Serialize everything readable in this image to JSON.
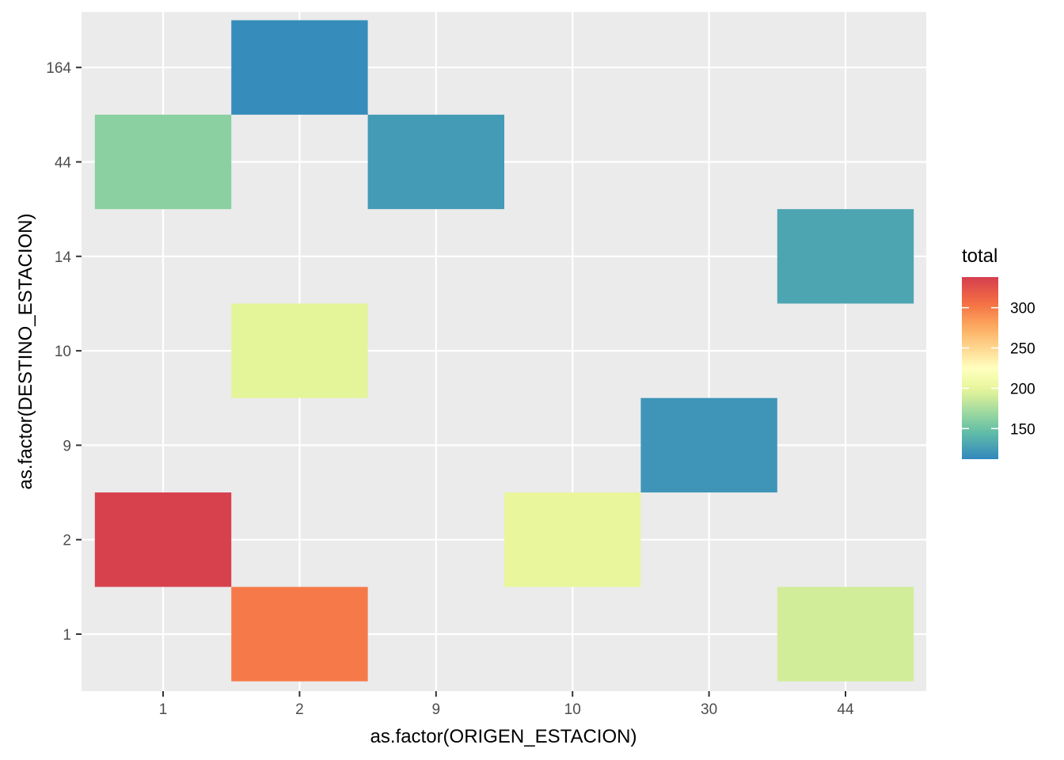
{
  "chart_data": {
    "type": "heatmap",
    "title": "",
    "xlabel": "as.factor(ORIGEN_ESTACION)",
    "ylabel": "as.factor(DESTINO_ESTACION)",
    "x_categories": [
      "1",
      "2",
      "9",
      "10",
      "30",
      "44"
    ],
    "y_categories": [
      "1",
      "2",
      "9",
      "10",
      "14",
      "44",
      "164"
    ],
    "cells": [
      {
        "x": "1",
        "y": "2",
        "value": 336
      },
      {
        "x": "1",
        "y": "44",
        "value": 162
      },
      {
        "x": "2",
        "y": "1",
        "value": 300
      },
      {
        "x": "2",
        "y": "10",
        "value": 197
      },
      {
        "x": "2",
        "y": "164",
        "value": 115
      },
      {
        "x": "9",
        "y": "44",
        "value": 124
      },
      {
        "x": "10",
        "y": "2",
        "value": 201
      },
      {
        "x": "30",
        "y": "9",
        "value": 120
      },
      {
        "x": "44",
        "y": "1",
        "value": 190
      },
      {
        "x": "44",
        "y": "14",
        "value": 130
      }
    ],
    "legend": {
      "title": "total",
      "position": "right",
      "min": 112,
      "max": 338,
      "breaks": [
        150,
        200,
        250,
        300
      ],
      "break_labels": [
        "150",
        "200",
        "250",
        "300"
      ],
      "palette": "Spectral"
    },
    "panel_background": "#ebebeb",
    "grid": true,
    "grid_color": "#ffffff"
  }
}
